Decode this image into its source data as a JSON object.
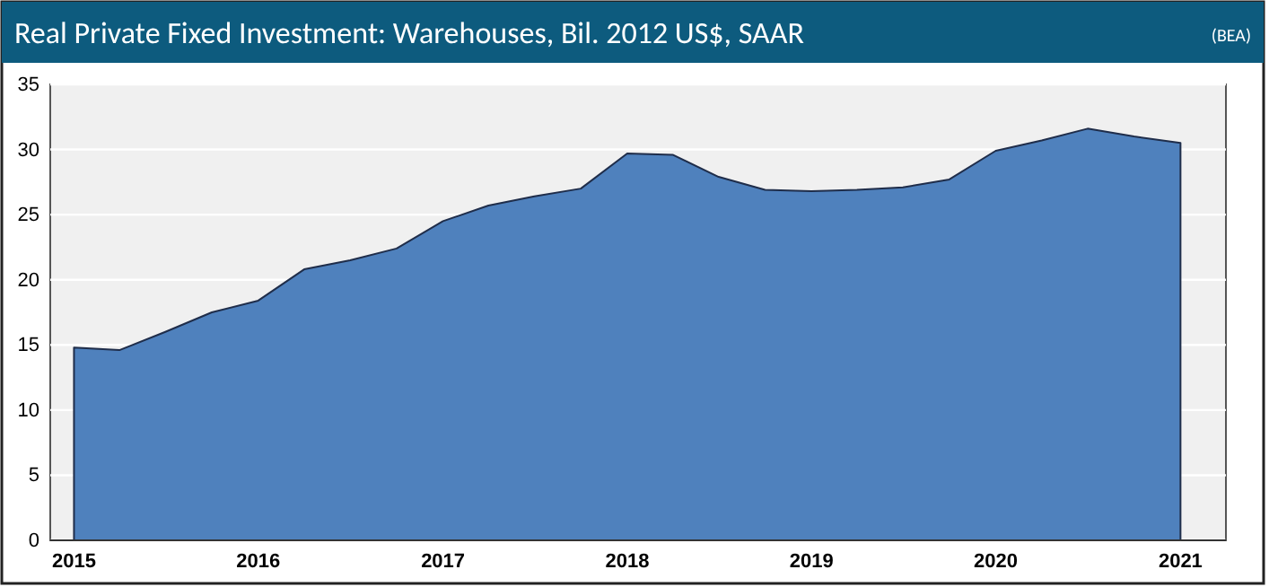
{
  "chart_data": {
    "type": "area",
    "title": "Real Private Fixed Investment: Warehouses, Bil. 2012 US$, SAAR",
    "annotations": [
      "(BEA)"
    ],
    "x": [
      "2015-01",
      "2015-04",
      "2015-07",
      "2015-10",
      "2016-01",
      "2016-04",
      "2016-07",
      "2016-10",
      "2017-01",
      "2017-04",
      "2017-07",
      "2017-10",
      "2018-01",
      "2018-04",
      "2018-07",
      "2018-10",
      "2019-01",
      "2019-04",
      "2019-07",
      "2019-10",
      "2020-01",
      "2020-04",
      "2020-07",
      "2020-10",
      "2021-01"
    ],
    "series": [
      {
        "color": "#4f81bd",
        "values": [
          14.8,
          14.6,
          16.0,
          17.5,
          18.4,
          20.8,
          21.5,
          22.4,
          24.5,
          25.7,
          26.4,
          27.0,
          29.7,
          29.6,
          27.9,
          26.9,
          26.8,
          26.9,
          27.1,
          27.7,
          29.9,
          30.7,
          31.6,
          31.0,
          30.5
        ]
      }
    ],
    "xlim": [
      "2014-11-15",
      "2021-04-01"
    ],
    "xticks": [
      {
        "value": "2015-01",
        "label": "2015"
      },
      {
        "value": "2016-01",
        "label": "2016"
      },
      {
        "value": "2017-01",
        "label": "2017"
      },
      {
        "value": "2018-01",
        "label": "2018"
      },
      {
        "value": "2019-01",
        "label": "2019"
      },
      {
        "value": "2020-01",
        "label": "2020"
      },
      {
        "value": "2021-01",
        "label": "2021"
      }
    ],
    "ylim": [
      0,
      35
    ],
    "yticks": [
      0,
      5,
      10,
      15,
      20,
      25,
      30,
      35
    ],
    "grid": "y"
  }
}
